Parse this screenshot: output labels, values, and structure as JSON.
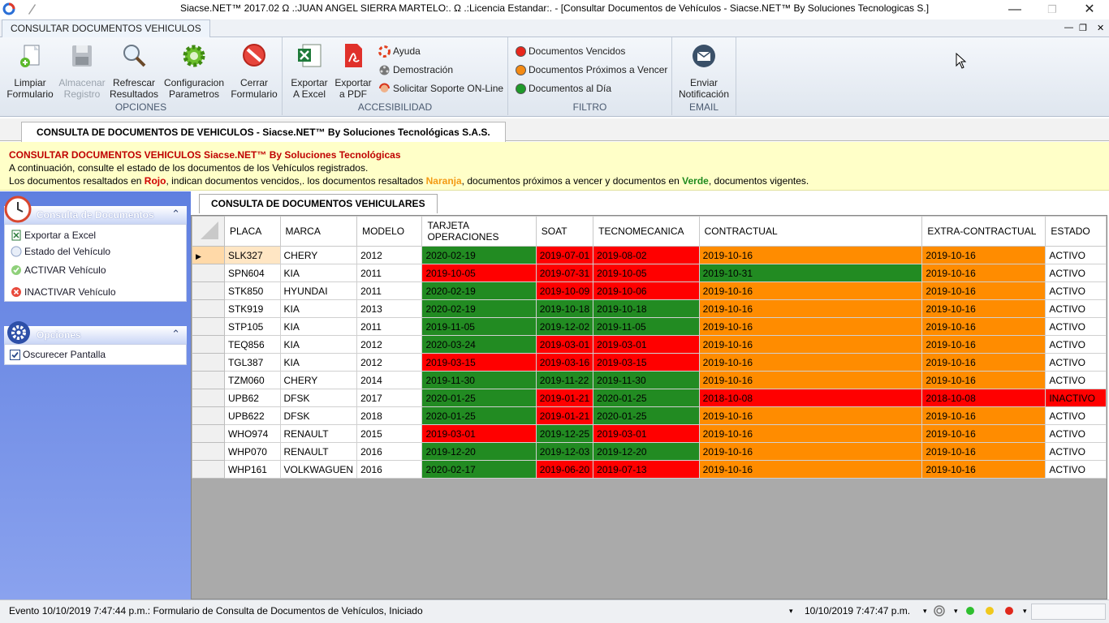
{
  "window": {
    "title": "Siacse.NET™ 2017.02 Ω  .:JUAN ANGEL SIERRA MARTELO:. Ω  .:Licencia Estandar:. - [Consultar Documentos de Vehículos - Siacse.NET™ By Soluciones Tecnologicas S.]"
  },
  "ribbon": {
    "tab": "CONSULTAR DOCUMENTOS VEHICULOS",
    "opciones": {
      "label": "OPCIONES",
      "limpiar": [
        "Limpiar",
        "Formulario"
      ],
      "almacenar": [
        "Almacenar",
        "Registro"
      ],
      "refrescar": [
        "Refrescar",
        "Resultados"
      ],
      "config": [
        "Configuracion",
        "Parametros"
      ],
      "cerrar": [
        "Cerrar",
        "Formulario"
      ]
    },
    "accesibilidad": {
      "label": "ACCESIBILIDAD",
      "excel": [
        "Exportar",
        "A Excel"
      ],
      "pdf": [
        "Exportar",
        "a PDF"
      ],
      "ayuda": "Ayuda",
      "demo": "Demostración",
      "soporte": "Solicitar Soporte ON-Line"
    },
    "filtro": {
      "label": "FILTRO",
      "vencidos": "Documentos Vencidos",
      "proximos": "Documentos Próximos a Vencer",
      "aldia": "Documentos al Día"
    },
    "email": {
      "label": "EMAIL",
      "enviar": [
        "Enviar",
        "Notificación"
      ]
    }
  },
  "doc_tab": "CONSULTA DE DOCUMENTOS DE VEHICULOS - Siacse.NET™ By Soluciones Tecnológicas S.A.S.",
  "info": {
    "heading": "CONSULTAR DOCUMENTOS VEHICULOS Siacse.NET™ By Soluciones  Tecnológicas",
    "line1": "A continuación, consulte el estado de los documentos de los Vehículos registrados.",
    "line2a": "Los documentos resaltados en ",
    "rojo": "Rojo",
    "line2b": ", indican documentos vencidos,. los documentos resaltados ",
    "naranja": "Naranja",
    "line2c": ", documentos próximos a vencer y documentos en ",
    "verde": "Verde",
    "line2d": ", documentos vigentes."
  },
  "sidebar": {
    "consulta_title": "Consulta de Documentos",
    "items": [
      "Exportar a Excel",
      "Estado del Vehículo",
      "ACTIVAR Vehículo",
      "INACTIVAR Vehículo"
    ],
    "opciones_title": "Opciones",
    "oscurecer": "Oscurecer Pantalla"
  },
  "subtab": "CONSULTA DE DOCUMENTOS VEHICULARES",
  "grid": {
    "headers": [
      "PLACA",
      "MARCA",
      "MODELO",
      "TARJETA OPERACIONES",
      "SOAT",
      "TECNOMECANICA",
      "CONTRACTUAL",
      "EXTRA-CONTRACTUAL",
      "ESTADO"
    ],
    "colors": {
      "g": "#228b22",
      "r": "#ff0000",
      "o": "#ff8c00"
    },
    "rows": [
      {
        "cells": [
          "SLK327",
          "CHERY",
          "2012",
          "2020-02-19",
          "2019-07-01",
          "2019-08-02",
          "2019-10-16",
          "2019-10-16",
          "ACTIVO"
        ],
        "status": [
          "",
          "",
          "",
          "g",
          "r",
          "r",
          "o",
          "o",
          ""
        ]
      },
      {
        "cells": [
          "SPN604",
          "KIA",
          "2011",
          "2019-10-05",
          "2019-07-31",
          "2019-10-05",
          "2019-10-31",
          "2019-10-16",
          "ACTIVO"
        ],
        "status": [
          "",
          "",
          "",
          "r",
          "r",
          "r",
          "g",
          "o",
          ""
        ]
      },
      {
        "cells": [
          "STK850",
          "HYUNDAI",
          "2011",
          "2020-02-19",
          "2019-10-09",
          "2019-10-06",
          "2019-10-16",
          "2019-10-16",
          "ACTIVO"
        ],
        "status": [
          "",
          "",
          "",
          "g",
          "r",
          "r",
          "o",
          "o",
          ""
        ]
      },
      {
        "cells": [
          "STK919",
          "KIA",
          "2013",
          "2020-02-19",
          "2019-10-18",
          "2019-10-18",
          "2019-10-16",
          "2019-10-16",
          "ACTIVO"
        ],
        "status": [
          "",
          "",
          "",
          "g",
          "g",
          "g",
          "o",
          "o",
          ""
        ]
      },
      {
        "cells": [
          "STP105",
          "KIA",
          "2011",
          "2019-11-05",
          "2019-12-02",
          "2019-11-05",
          "2019-10-16",
          "2019-10-16",
          "ACTIVO"
        ],
        "status": [
          "",
          "",
          "",
          "g",
          "g",
          "g",
          "o",
          "o",
          ""
        ]
      },
      {
        "cells": [
          "TEQ856",
          "KIA",
          "2012",
          "2020-03-24",
          "2019-03-01",
          "2019-03-01",
          "2019-10-16",
          "2019-10-16",
          "ACTIVO"
        ],
        "status": [
          "",
          "",
          "",
          "g",
          "r",
          "r",
          "o",
          "o",
          ""
        ]
      },
      {
        "cells": [
          "TGL387",
          "KIA",
          "2012",
          "2019-03-15",
          "2019-03-16",
          "2019-03-15",
          "2019-10-16",
          "2019-10-16",
          "ACTIVO"
        ],
        "status": [
          "",
          "",
          "",
          "r",
          "r",
          "r",
          "o",
          "o",
          ""
        ]
      },
      {
        "cells": [
          "TZM060",
          "CHERY",
          "2014",
          "2019-11-30",
          "2019-11-22",
          "2019-11-30",
          "2019-10-16",
          "2019-10-16",
          "ACTIVO"
        ],
        "status": [
          "",
          "",
          "",
          "g",
          "g",
          "g",
          "o",
          "o",
          ""
        ]
      },
      {
        "cells": [
          "UPB62",
          "DFSK",
          "2017",
          "2020-01-25",
          "2019-01-21",
          "2020-01-25",
          "2018-10-08",
          "2018-10-08",
          "INACTIVO"
        ],
        "status": [
          "",
          "",
          "",
          "g",
          "r",
          "g",
          "r",
          "r",
          "r"
        ]
      },
      {
        "cells": [
          "UPB622",
          "DFSK",
          "2018",
          "2020-01-25",
          "2019-01-21",
          "2020-01-25",
          "2019-10-16",
          "2019-10-16",
          "ACTIVO"
        ],
        "status": [
          "",
          "",
          "",
          "g",
          "r",
          "g",
          "o",
          "o",
          ""
        ]
      },
      {
        "cells": [
          "WHO974",
          "RENAULT",
          "2015",
          "2019-03-01",
          "2019-12-25",
          "2019-03-01",
          "2019-10-16",
          "2019-10-16",
          "ACTIVO"
        ],
        "status": [
          "",
          "",
          "",
          "r",
          "g",
          "r",
          "o",
          "o",
          ""
        ]
      },
      {
        "cells": [
          "WHP070",
          "RENAULT",
          "2016",
          "2019-12-20",
          "2019-12-03",
          "2019-12-20",
          "2019-10-16",
          "2019-10-16",
          "ACTIVO"
        ],
        "status": [
          "",
          "",
          "",
          "g",
          "g",
          "g",
          "o",
          "o",
          ""
        ]
      },
      {
        "cells": [
          "WHP161",
          "VOLKWAGUEN",
          "2016",
          "2020-02-17",
          "2019-06-20",
          "2019-07-13",
          "2019-10-16",
          "2019-10-16",
          "ACTIVO"
        ],
        "status": [
          "",
          "",
          "",
          "g",
          "r",
          "r",
          "o",
          "o",
          ""
        ]
      }
    ]
  },
  "status": {
    "event": "Evento 10/10/2019 7:47:44 p.m.: Formulario de Consulta de Documentos de Vehículos, Iniciado",
    "datetime": "10/10/2019 7:47:47 p.m."
  }
}
